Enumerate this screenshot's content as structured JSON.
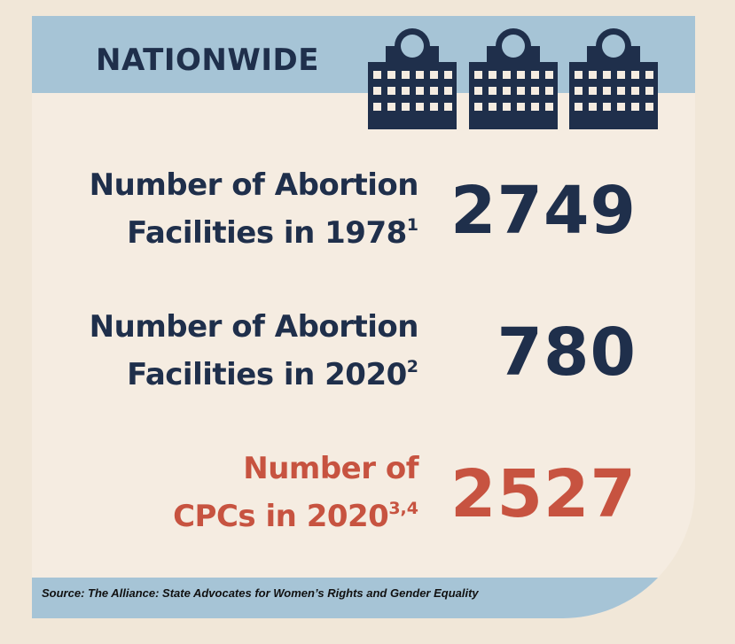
{
  "header": {
    "title": "NATIONWIDE",
    "icons": [
      "building-icon",
      "building-icon",
      "building-icon"
    ],
    "band_color": "#a6c4d6"
  },
  "stats": [
    {
      "label_line1": "Number of Abortion",
      "label_line2": "Facilities in 1978",
      "footnote": "1",
      "value": "2749",
      "color": "#1f2f4b"
    },
    {
      "label_line1": "Number of Abortion",
      "label_line2": "Facilities in 2020",
      "footnote": "2",
      "value": "780",
      "color": "#1f2f4b"
    },
    {
      "label_line1": "Number of",
      "label_line2": "CPCs in 2020",
      "footnote": "3,4",
      "value": "2527",
      "color": "#c75340"
    }
  ],
  "source": {
    "text": "Source: The Alliance: State Advocates for Women’s Rights and Gender Equality"
  },
  "colors": {
    "navy": "#1f2f4b",
    "accent_red": "#c75340",
    "card_background": "#f5ece1",
    "page_background": "#f1e7d8"
  }
}
